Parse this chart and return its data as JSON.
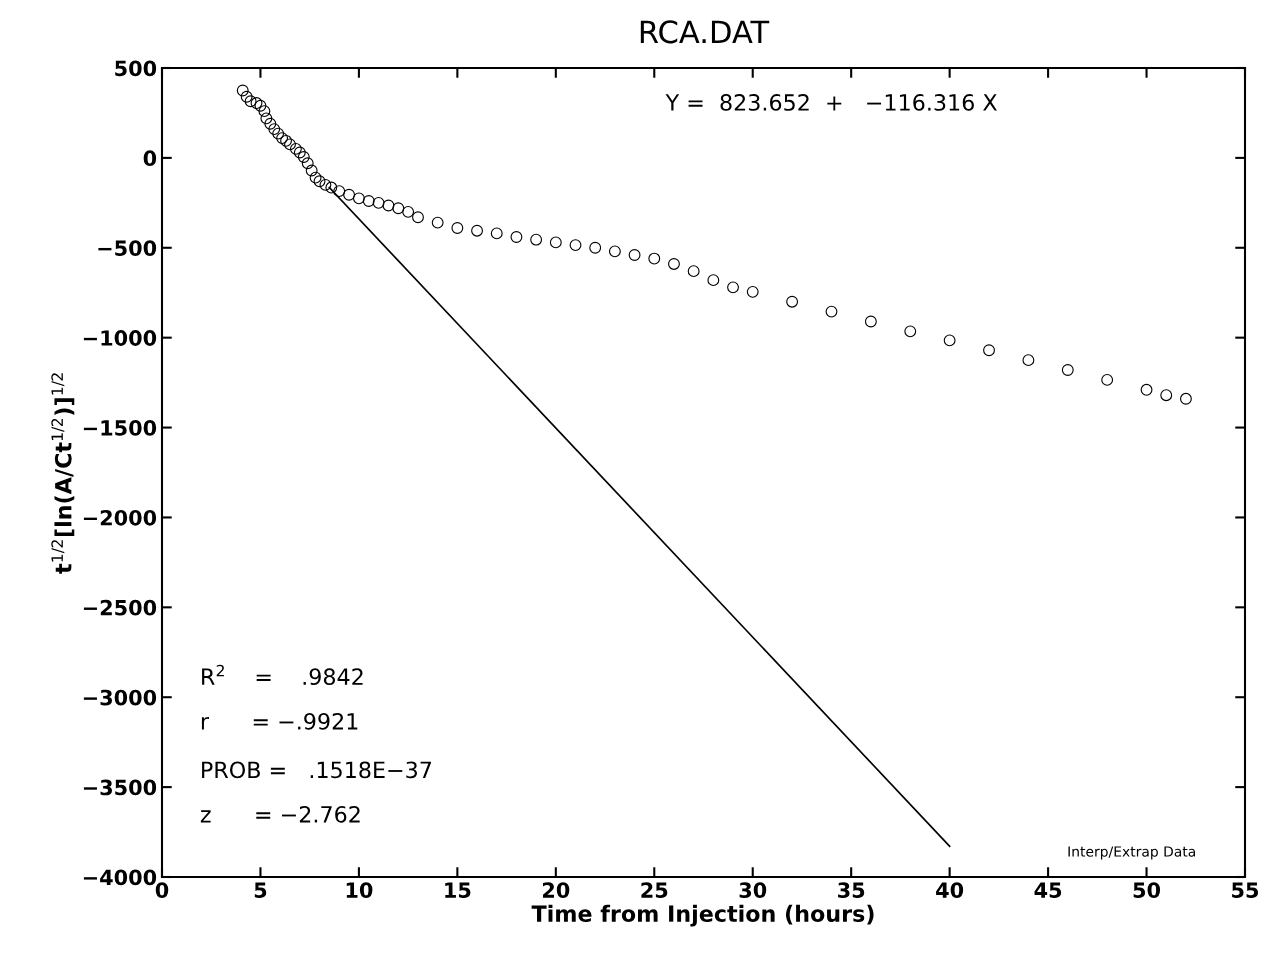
{
  "chart_data": {
    "type": "scatter",
    "title": "RCA.DAT",
    "xlabel": "Time from Injection (hours)",
    "ylabel": "t$^{1/2}$[ln(A/Ct$^{1/2}$)]$^{1/2}$",
    "xlim": [
      0,
      55
    ],
    "xticks": [
      0,
      5,
      10,
      15,
      20,
      25,
      30,
      35,
      40,
      45,
      50,
      55
    ],
    "ylim": [
      -4000,
      500
    ],
    "yticks": [
      -4000,
      -3500,
      -3000,
      -2500,
      -2000,
      -1500,
      -1000,
      -500,
      0,
      500
    ],
    "grid": false,
    "legend": false,
    "series": [
      {
        "marker": "circle",
        "color": "#000000",
        "x": [
          4.1,
          4.3,
          4.5,
          4.8,
          5.0,
          5.2,
          5.3,
          5.5,
          5.7,
          5.9,
          6.1,
          6.3,
          6.5,
          6.8,
          7.0,
          7.2,
          7.4,
          7.6,
          7.8,
          8.0,
          8.3,
          8.6,
          9.0,
          9.5,
          10,
          10.5,
          11,
          11.5,
          12,
          12.5,
          13,
          14,
          15,
          16,
          17,
          18,
          19,
          20,
          21,
          22,
          23,
          24,
          25,
          26,
          27,
          28,
          29,
          30,
          32,
          34,
          36,
          38,
          40,
          42,
          44,
          46,
          48,
          50,
          51,
          52
        ],
        "values": [
          375,
          340,
          315,
          305,
          290,
          260,
          220,
          190,
          160,
          135,
          110,
          95,
          75,
          50,
          30,
          5,
          -30,
          -70,
          -110,
          -130,
          -150,
          -165,
          -185,
          -205,
          -225,
          -240,
          -250,
          -265,
          -280,
          -300,
          -330,
          -360,
          -390,
          -405,
          -420,
          -440,
          -455,
          -470,
          -485,
          -500,
          -520,
          -540,
          -560,
          -590,
          -630,
          -680,
          -720,
          -745,
          -800,
          -855,
          -910,
          -965,
          -1015,
          -1070,
          -1125,
          -1180,
          -1235,
          -1290,
          -1320,
          -1340
        ]
      },
      {
        "type": "line",
        "marker": "none",
        "color": "#000000",
        "x": [
          8.5,
          40
        ],
        "values": [
          -165,
          -3829
        ]
      }
    ],
    "annotations": [
      "Y =  823.652  +   −116.316 X",
      "R$^{2}$    =    .9842",
      "r      = −.9921",
      "PROB =   .1518E−37",
      "z      = −2.762",
      "Interp/Extrap Data"
    ]
  }
}
